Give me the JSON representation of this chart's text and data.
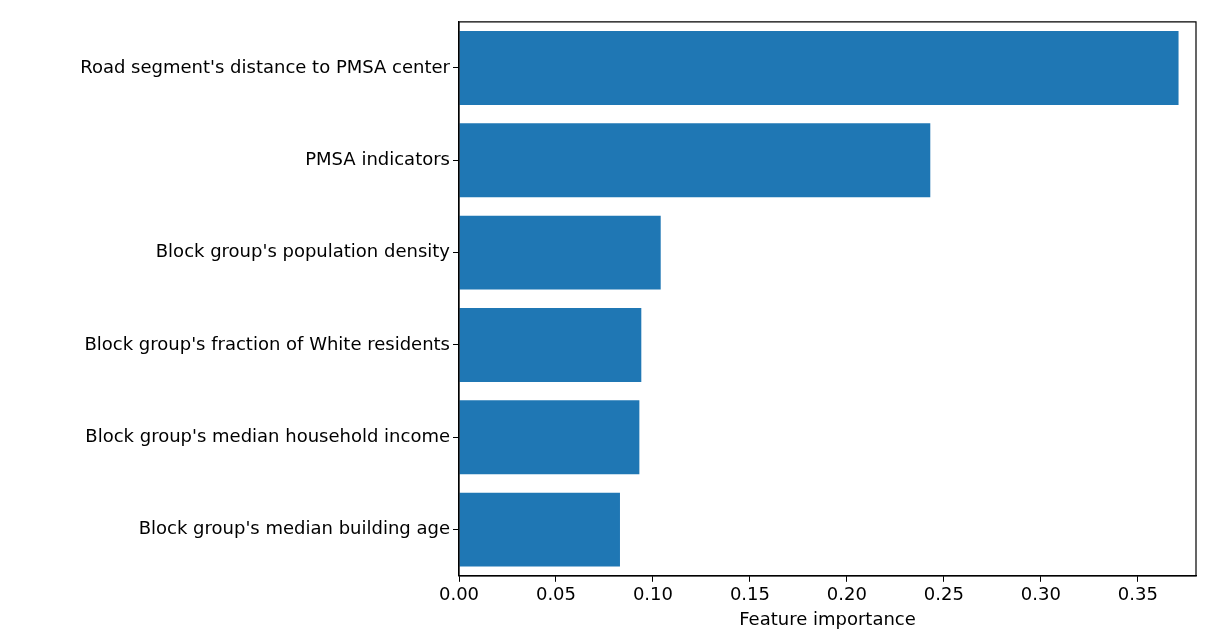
{
  "chart_data": {
    "type": "bar",
    "orientation": "horizontal",
    "xlabel": "Feature importance",
    "categories": [
      "Road segment's distance to PMSA center",
      "PMSA indicators",
      "Block group's population density",
      "Block group's fraction of White residents",
      "Block group's median household income",
      "Block group's median building age"
    ],
    "values": [
      0.371,
      0.243,
      0.104,
      0.094,
      0.093,
      0.083
    ],
    "color": "#1f77b4",
    "xlim": [
      0,
      0.38
    ],
    "xticks": [
      {
        "value": 0,
        "label": "0.00"
      },
      {
        "value": 0.05,
        "label": "0.05"
      },
      {
        "value": 0.1,
        "label": "0.10"
      },
      {
        "value": 0.15,
        "label": "0.15"
      },
      {
        "value": 0.2,
        "label": "0.20"
      },
      {
        "value": 0.25,
        "label": "0.25"
      },
      {
        "value": 0.3,
        "label": "0.30"
      },
      {
        "value": 0.35,
        "label": "0.35"
      }
    ],
    "grid": false,
    "legend": false
  }
}
